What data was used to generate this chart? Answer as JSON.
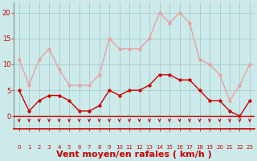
{
  "x": [
    0,
    1,
    2,
    3,
    4,
    5,
    6,
    7,
    8,
    9,
    10,
    11,
    12,
    13,
    14,
    15,
    16,
    17,
    18,
    19,
    20,
    21,
    22,
    23
  ],
  "wind_mean": [
    5,
    1,
    3,
    4,
    4,
    3,
    1,
    1,
    2,
    5,
    4,
    5,
    5,
    6,
    8,
    8,
    7,
    7,
    5,
    3,
    3,
    1,
    0,
    3
  ],
  "wind_gust": [
    11,
    6,
    11,
    13,
    9,
    6,
    6,
    6,
    8,
    15,
    13,
    13,
    13,
    15,
    20,
    18,
    20,
    18,
    11,
    10,
    8,
    3,
    6,
    10
  ],
  "xlabel": "Vent moyen/en rafales ( km/h )",
  "yticks": [
    0,
    5,
    10,
    15,
    20
  ],
  "ylim": [
    -2.5,
    22
  ],
  "xlim": [
    -0.5,
    23.5
  ],
  "bg_color": "#cceaea",
  "grid_color": "#aacccc",
  "mean_color": "#cc0000",
  "gust_color": "#e8a0a0",
  "arrow_color": "#cc0000",
  "xlabel_color": "#cc0000",
  "tick_color": "#cc0000",
  "axis_label_fontsize": 8,
  "tick_fontsize": 6,
  "line_width": 1.0,
  "marker_size": 2.5
}
